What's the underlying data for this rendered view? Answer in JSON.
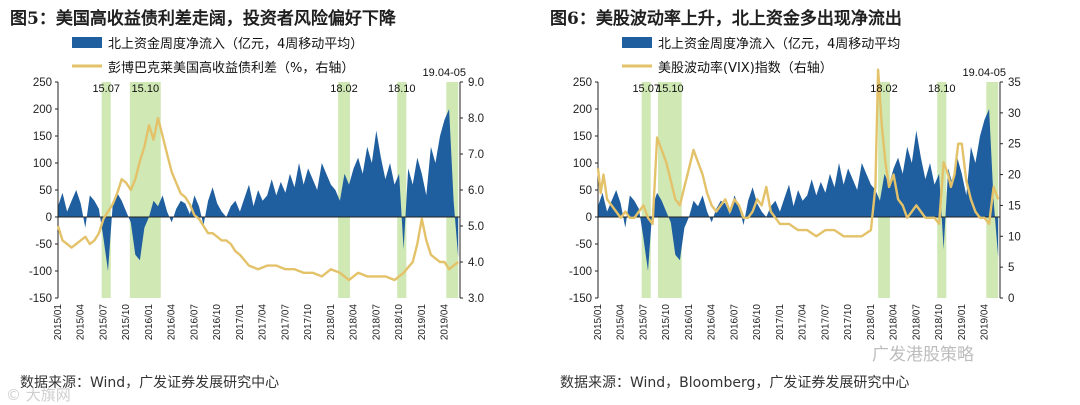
{
  "colors": {
    "area": "#1f5f9f",
    "line": "#e3c26a",
    "band": "#cfe8b4"
  },
  "charts": [
    {
      "panel": "left",
      "title": "图5：美国高收益债利差走阔，投资者风险偏好下降",
      "source": "数据来源：Wind，广发证券发展研究中心",
      "watermark": "© 大旗网",
      "legend": [
        "北上资金周度净流入（亿元，4周移动平均）",
        "彭博巴克莱美国高收益债利差（%，右轴）"
      ]
    },
    {
      "panel": "right",
      "title": "图6：美股波动率上升，北上资金多出现净流出",
      "source": "数据来源：Wind，Bloomberg，广发证券发展研究中心",
      "watermark": "广发港股策略",
      "legend": [
        "北上资金周度净流入（亿元，4周移动平均",
        "美股波动率(VIX)指数（右轴）"
      ]
    }
  ],
  "chart_data": [
    {
      "type": "area",
      "title": "图5：美国高收益债利差走阔，投资者风险偏好下降",
      "x_range": [
        "2015/01",
        "2019/05"
      ],
      "x_ticks": [
        "2015/01",
        "2015/04",
        "2015/07",
        "2015/10",
        "2016/01",
        "2016/04",
        "2016/07",
        "2016/10",
        "2017/01",
        "2017/04",
        "2017/07",
        "2017/10",
        "2018/01",
        "2018/04",
        "2018/07",
        "2018/10",
        "2019/01",
        "2019/04"
      ],
      "ylim": [
        -150,
        250
      ],
      "y_ticks": [
        "250",
        "200",
        "150",
        "100",
        "50",
        "0",
        "-50",
        "-100",
        "-150"
      ],
      "y2lim": [
        3.0,
        9.0
      ],
      "y2_ticks": [
        "9.0",
        "8.0",
        "7.0",
        "6.0",
        "5.0",
        "4.0",
        "3.0"
      ],
      "bands": [
        {
          "label": "15.07",
          "start": 2015.48,
          "end": 2015.58
        },
        {
          "label": "15.10",
          "start": 2015.79,
          "end": 2016.13
        },
        {
          "label": "18.02",
          "start": 2018.08,
          "end": 2018.21
        },
        {
          "label": "18.10",
          "start": 2018.73,
          "end": 2018.83
        },
        {
          "label": "19.04-05",
          "start": 2019.27,
          "end": 2019.4
        }
      ],
      "series": [
        {
          "name": "北上资金周度净流入（亿元，4周移动平均）",
          "axis": "left",
          "style": "area",
          "t": [
            2015.0,
            2015.05,
            2015.1,
            2015.15,
            2015.2,
            2015.25,
            2015.3,
            2015.35,
            2015.4,
            2015.45,
            2015.5,
            2015.55,
            2015.6,
            2015.65,
            2015.7,
            2015.75,
            2015.8,
            2015.85,
            2015.9,
            2015.95,
            2016.0,
            2016.05,
            2016.1,
            2016.15,
            2016.2,
            2016.25,
            2016.3,
            2016.35,
            2016.4,
            2016.45,
            2016.5,
            2016.55,
            2016.6,
            2016.65,
            2016.7,
            2016.75,
            2016.8,
            2016.85,
            2016.9,
            2016.95,
            2017.0,
            2017.05,
            2017.1,
            2017.15,
            2017.2,
            2017.25,
            2017.3,
            2017.35,
            2017.4,
            2017.45,
            2017.5,
            2017.55,
            2017.6,
            2017.65,
            2017.7,
            2017.75,
            2017.8,
            2017.85,
            2017.9,
            2017.95,
            2018.0,
            2018.05,
            2018.1,
            2018.15,
            2018.2,
            2018.25,
            2018.3,
            2018.35,
            2018.4,
            2018.45,
            2018.5,
            2018.55,
            2018.6,
            2018.65,
            2018.7,
            2018.75,
            2018.8,
            2018.85,
            2018.9,
            2018.95,
            2019.0,
            2019.05,
            2019.1,
            2019.15,
            2019.2,
            2019.25,
            2019.3,
            2019.35,
            2019.4
          ],
          "values": [
            20,
            45,
            10,
            30,
            50,
            25,
            -20,
            40,
            30,
            15,
            -40,
            -100,
            20,
            45,
            30,
            10,
            -10,
            -70,
            -80,
            -20,
            0,
            30,
            20,
            40,
            10,
            -10,
            15,
            30,
            25,
            5,
            40,
            20,
            -15,
            30,
            55,
            25,
            10,
            0,
            20,
            30,
            10,
            35,
            60,
            20,
            50,
            30,
            40,
            70,
            40,
            65,
            45,
            80,
            55,
            100,
            60,
            90,
            70,
            50,
            100,
            80,
            60,
            50,
            30,
            80,
            60,
            90,
            110,
            80,
            130,
            100,
            160,
            110,
            70,
            100,
            60,
            80,
            -60,
            90,
            60,
            110,
            80,
            40,
            130,
            100,
            150,
            180,
            200,
            30,
            -75
          ]
        },
        {
          "name": "彭博巴克莱美国高收益债利差（%，右轴）",
          "axis": "right",
          "style": "line",
          "t": [
            2015.0,
            2015.05,
            2015.1,
            2015.15,
            2015.2,
            2015.25,
            2015.3,
            2015.35,
            2015.4,
            2015.45,
            2015.5,
            2015.55,
            2015.6,
            2015.65,
            2015.7,
            2015.75,
            2015.8,
            2015.85,
            2015.9,
            2015.95,
            2016.0,
            2016.05,
            2016.1,
            2016.15,
            2016.2,
            2016.25,
            2016.3,
            2016.35,
            2016.4,
            2016.45,
            2016.5,
            2016.55,
            2016.6,
            2016.65,
            2016.7,
            2016.75,
            2016.8,
            2016.85,
            2016.9,
            2016.95,
            2017.0,
            2017.1,
            2017.2,
            2017.3,
            2017.4,
            2017.5,
            2017.6,
            2017.7,
            2017.8,
            2017.9,
            2018.0,
            2018.1,
            2018.2,
            2018.3,
            2018.4,
            2018.5,
            2018.6,
            2018.7,
            2018.8,
            2018.9,
            2018.95,
            2019.0,
            2019.05,
            2019.1,
            2019.15,
            2019.2,
            2019.25,
            2019.3,
            2019.35,
            2019.4
          ],
          "values": [
            5.0,
            4.6,
            4.5,
            4.4,
            4.5,
            4.6,
            4.7,
            4.5,
            4.6,
            4.8,
            5.2,
            5.4,
            5.6,
            5.9,
            6.3,
            6.2,
            6.0,
            6.3,
            6.8,
            7.2,
            7.8,
            7.4,
            8.0,
            7.5,
            7.0,
            6.5,
            6.2,
            5.9,
            5.8,
            5.6,
            5.3,
            5.2,
            5.0,
            4.8,
            4.8,
            4.7,
            4.6,
            4.6,
            4.5,
            4.3,
            4.2,
            3.9,
            3.8,
            3.9,
            3.9,
            3.8,
            3.8,
            3.7,
            3.7,
            3.6,
            3.8,
            3.7,
            3.5,
            3.7,
            3.6,
            3.6,
            3.6,
            3.5,
            3.7,
            4.0,
            4.5,
            5.2,
            4.6,
            4.2,
            4.1,
            4.0,
            4.0,
            3.8,
            3.9,
            4.0
          ]
        }
      ]
    },
    {
      "type": "area",
      "title": "图6：美股波动率上升，北上资金多出现净流出",
      "x_range": [
        "2015/01",
        "2019/05"
      ],
      "x_ticks": [
        "2015/01",
        "2015/04",
        "2015/07",
        "2015/10",
        "2016/01",
        "2016/04",
        "2016/07",
        "2016/10",
        "2017/01",
        "2017/04",
        "2017/07",
        "2017/10",
        "2018/01",
        "2018/04",
        "2018/07",
        "2018/10",
        "2019/01",
        "2019/04"
      ],
      "ylim": [
        -150,
        250
      ],
      "y_ticks": [
        "250",
        "200",
        "150",
        "100",
        "50",
        "0",
        "-50",
        "-100",
        "-150"
      ],
      "y2lim": [
        0,
        35
      ],
      "y2_ticks": [
        "35",
        "30",
        "25",
        "20",
        "15",
        "10",
        "5",
        "0"
      ],
      "bands": [
        {
          "label": "15.07",
          "start": 2015.48,
          "end": 2015.58
        },
        {
          "label": "15.10",
          "start": 2015.66,
          "end": 2015.92
        },
        {
          "label": "18.02",
          "start": 2018.08,
          "end": 2018.21
        },
        {
          "label": "18.10",
          "start": 2018.73,
          "end": 2018.83
        },
        {
          "label": "19.04-05",
          "start": 2019.27,
          "end": 2019.4
        }
      ],
      "series": [
        {
          "name": "北上资金周度净流入（亿元，4周移动平均",
          "axis": "left",
          "style": "area",
          "t": [
            2015.0,
            2015.05,
            2015.1,
            2015.15,
            2015.2,
            2015.25,
            2015.3,
            2015.35,
            2015.4,
            2015.45,
            2015.5,
            2015.55,
            2015.6,
            2015.65,
            2015.7,
            2015.75,
            2015.8,
            2015.85,
            2015.9,
            2015.95,
            2016.0,
            2016.05,
            2016.1,
            2016.15,
            2016.2,
            2016.25,
            2016.3,
            2016.35,
            2016.4,
            2016.45,
            2016.5,
            2016.55,
            2016.6,
            2016.65,
            2016.7,
            2016.75,
            2016.8,
            2016.85,
            2016.9,
            2016.95,
            2017.0,
            2017.05,
            2017.1,
            2017.15,
            2017.2,
            2017.25,
            2017.3,
            2017.35,
            2017.4,
            2017.45,
            2017.5,
            2017.55,
            2017.6,
            2017.65,
            2017.7,
            2017.75,
            2017.8,
            2017.85,
            2017.9,
            2017.95,
            2018.0,
            2018.05,
            2018.1,
            2018.15,
            2018.2,
            2018.25,
            2018.3,
            2018.35,
            2018.4,
            2018.45,
            2018.5,
            2018.55,
            2018.6,
            2018.65,
            2018.7,
            2018.75,
            2018.8,
            2018.85,
            2018.9,
            2018.95,
            2019.0,
            2019.05,
            2019.1,
            2019.15,
            2019.2,
            2019.25,
            2019.3,
            2019.35,
            2019.4
          ],
          "values": [
            20,
            45,
            10,
            30,
            50,
            25,
            -20,
            40,
            30,
            15,
            -40,
            -100,
            20,
            45,
            30,
            10,
            -10,
            -70,
            -80,
            -20,
            0,
            30,
            20,
            40,
            10,
            -10,
            15,
            30,
            25,
            5,
            40,
            20,
            -15,
            30,
            55,
            25,
            10,
            0,
            20,
            30,
            10,
            35,
            60,
            20,
            50,
            30,
            40,
            70,
            40,
            65,
            45,
            80,
            55,
            100,
            60,
            90,
            70,
            50,
            100,
            80,
            60,
            50,
            30,
            80,
            60,
            90,
            110,
            80,
            130,
            100,
            160,
            110,
            70,
            100,
            60,
            80,
            -60,
            90,
            60,
            110,
            80,
            40,
            130,
            100,
            150,
            180,
            200,
            30,
            -75
          ]
        },
        {
          "name": "美股波动率(VIX)指数（右轴）",
          "axis": "right",
          "style": "line",
          "t": [
            2015.0,
            2015.03,
            2015.06,
            2015.1,
            2015.15,
            2015.2,
            2015.25,
            2015.3,
            2015.35,
            2015.4,
            2015.45,
            2015.5,
            2015.55,
            2015.6,
            2015.65,
            2015.7,
            2015.75,
            2015.8,
            2015.85,
            2015.9,
            2015.95,
            2016.0,
            2016.05,
            2016.1,
            2016.15,
            2016.2,
            2016.25,
            2016.3,
            2016.35,
            2016.4,
            2016.45,
            2016.5,
            2016.55,
            2016.6,
            2016.65,
            2016.7,
            2016.75,
            2016.8,
            2016.85,
            2016.9,
            2016.95,
            2017.0,
            2017.1,
            2017.2,
            2017.3,
            2017.4,
            2017.5,
            2017.6,
            2017.7,
            2017.8,
            2017.9,
            2018.0,
            2018.05,
            2018.08,
            2018.12,
            2018.16,
            2018.2,
            2018.25,
            2018.3,
            2018.35,
            2018.4,
            2018.45,
            2018.5,
            2018.55,
            2018.6,
            2018.65,
            2018.7,
            2018.75,
            2018.8,
            2018.85,
            2018.88,
            2018.92,
            2018.96,
            2019.0,
            2019.05,
            2019.1,
            2019.15,
            2019.2,
            2019.25,
            2019.3,
            2019.35,
            2019.4
          ],
          "values": [
            21,
            17,
            20,
            16,
            15,
            14,
            13,
            14,
            13,
            13,
            14,
            15,
            13,
            12,
            26,
            24,
            22,
            19,
            16,
            15,
            18,
            21,
            24,
            22,
            20,
            17,
            15,
            14,
            15,
            16,
            14,
            16,
            15,
            13,
            13,
            14,
            16,
            15,
            18,
            14,
            13,
            12,
            12,
            11,
            11,
            10,
            11,
            11,
            10,
            10,
            10,
            11,
            18,
            37,
            28,
            22,
            18,
            20,
            16,
            15,
            13,
            14,
            15,
            14,
            13,
            13,
            13,
            12,
            22,
            20,
            18,
            20,
            25,
            25,
            19,
            16,
            14,
            13,
            13,
            12,
            18,
            16
          ]
        }
      ]
    }
  ]
}
